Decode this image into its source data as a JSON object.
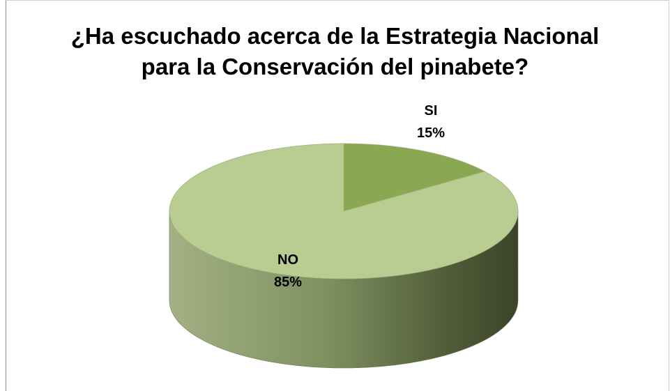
{
  "chart_data": {
    "type": "pie",
    "title_lines": [
      "¿Ha escuchado acerca de la Estrategia Nacional",
      "para la Conservación del pinabete?"
    ],
    "slices": [
      {
        "label": "SI",
        "percent_label": "15%",
        "value": 15,
        "color": "#8aa752"
      },
      {
        "label": "NO",
        "percent_label": "85%",
        "value": 85,
        "color": "#b9cc92"
      }
    ],
    "legend": "none"
  }
}
